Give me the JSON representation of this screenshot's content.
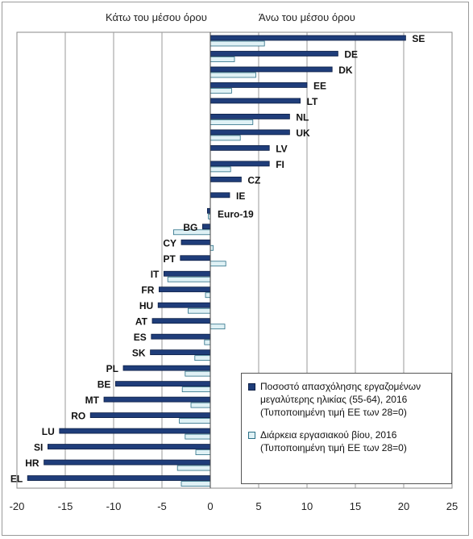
{
  "header": {
    "below_label": "Κάτω του μέσου όρου",
    "above_label": "Άνω του μέσου όρου"
  },
  "legend": {
    "series1_line1": "Ποσοστό απασχόλησης εργαζομένων",
    "series1_line2": "μεγαλύτερης ηλικίας (55-64), 2016",
    "series1_line3": "(Τυποποιημένη τιμή ΕΕ των 28=0)",
    "series2_line1": "Διάρκεια εργασιακού βίου, 2016",
    "series2_line2": "(Τυποποιημένη τιμή ΕΕ των 28=0)"
  },
  "colors": {
    "series1": "#1f3d7a",
    "series2": "#dff1f5",
    "series2_border": "#2a6f86",
    "gridline": "#9a9a9a"
  },
  "chart_data": {
    "type": "bar",
    "orientation": "horizontal",
    "categories": [
      "SE",
      "DE",
      "DK",
      "EE",
      "LT",
      "NL",
      "UK",
      "LV",
      "FI",
      "CZ",
      "IE",
      "Euro-19",
      "BG",
      "CY",
      "PT",
      "IT",
      "FR",
      "HU",
      "AT",
      "ES",
      "SK",
      "PL",
      "BE",
      "MT",
      "RO",
      "LU",
      "SI",
      "HR",
      "EL"
    ],
    "series": [
      {
        "name": "Ποσοστό απασχόλησης εργαζομένων μεγαλύτερης ηλικίας (55-64), 2016 (Τυποποιημένη τιμή ΕΕ των 28=0)",
        "values": [
          20.2,
          13.2,
          12.6,
          10.0,
          9.3,
          8.2,
          8.2,
          6.1,
          6.1,
          3.2,
          2.0,
          -0.3,
          -0.8,
          -3.0,
          -3.1,
          -4.8,
          -5.3,
          -5.4,
          -6.0,
          -6.1,
          -6.2,
          -9.0,
          -9.8,
          -11.0,
          -12.4,
          -15.6,
          -16.8,
          -17.2,
          -18.9
        ]
      },
      {
        "name": "Διάρκεια εργασιακού βίου, 2016 (Τυποποιημένη τιμή ΕΕ των 28=0)",
        "values": [
          5.6,
          2.5,
          4.7,
          2.2,
          0.0,
          4.4,
          3.1,
          0.0,
          2.1,
          0.0,
          0.0,
          -0.2,
          -3.8,
          0.3,
          1.6,
          -4.4,
          -0.5,
          -2.3,
          1.5,
          -0.6,
          -1.6,
          -2.6,
          -2.9,
          -2.0,
          -3.2,
          -2.6,
          -1.5,
          -3.4,
          -3.0
        ]
      }
    ],
    "xlim": [
      -20,
      25
    ],
    "xticks": [
      -20,
      -15,
      -10,
      -5,
      0,
      5,
      10,
      15,
      20,
      25
    ],
    "grid": true,
    "legend_position": "bottom-right"
  }
}
